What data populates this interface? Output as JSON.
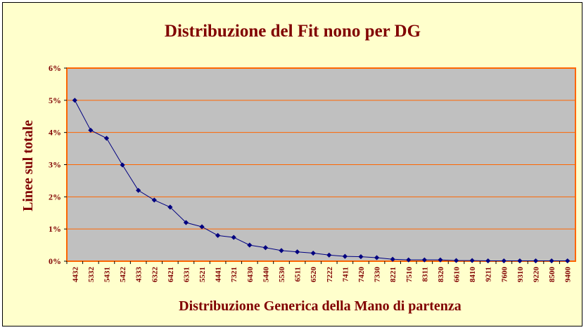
{
  "chart_data": {
    "type": "line",
    "title": "Distribuzione del Fit nono per DG",
    "xlabel": "Distribuzione Generica della Mano di partenza",
    "ylabel": "Linee sul totale",
    "ylim": [
      0,
      6
    ],
    "y_unit": "%",
    "yticks": [
      "0%",
      "1%",
      "2%",
      "3%",
      "4%",
      "5%",
      "6%"
    ],
    "grid": true,
    "legend": "none",
    "colors": {
      "background": "#ffffcc",
      "plot_area": "#c0c0c0",
      "gridlines": "#ff6600",
      "plot_border": "#ff6600",
      "series": "#000080",
      "text": "#800000"
    },
    "categories": [
      "4432",
      "5332",
      "5431",
      "5422",
      "4333",
      "6322",
      "6421",
      "6331",
      "5521",
      "4441",
      "7321",
      "6430",
      "5440",
      "5530",
      "6511",
      "6520",
      "7222",
      "7411",
      "7420",
      "7330",
      "8221",
      "7510",
      "8311",
      "8320",
      "6610",
      "8410",
      "9211",
      "7600",
      "9310",
      "9220",
      "8500",
      "9400"
    ],
    "series": [
      {
        "values": [
          5.0,
          4.07,
          3.82,
          2.99,
          2.2,
          1.9,
          1.68,
          1.2,
          1.07,
          0.8,
          0.74,
          0.5,
          0.42,
          0.33,
          0.29,
          0.25,
          0.19,
          0.15,
          0.14,
          0.11,
          0.06,
          0.04,
          0.04,
          0.04,
          0.02,
          0.02,
          0.01,
          0.01,
          0.01,
          0.01,
          0.01,
          0.01
        ]
      }
    ]
  }
}
